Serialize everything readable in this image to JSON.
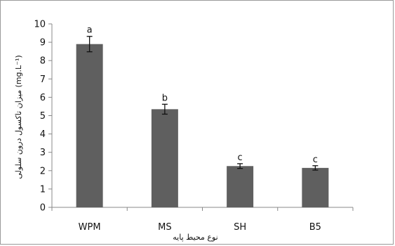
{
  "chart_data": {
    "type": "bar",
    "categories": [
      "WPM",
      "MS",
      "SH",
      "B5"
    ],
    "values": [
      8.9,
      5.35,
      2.25,
      2.15
    ],
    "errors": [
      0.42,
      0.27,
      0.13,
      0.12
    ],
    "significance": [
      "a",
      "b",
      "c",
      "c"
    ],
    "xlabel": "نوع محیط پایه",
    "ylabel": "(mg.L⁻¹) میزان تاکسول درون سلولی",
    "ylim": [
      0,
      10
    ],
    "yticks": [
      "0",
      "1",
      "2",
      "3",
      "4",
      "5",
      "6",
      "7",
      "8",
      "9",
      "10"
    ],
    "grid": false,
    "bar_color": "#5f5f5f",
    "axis_color": "#888888"
  }
}
